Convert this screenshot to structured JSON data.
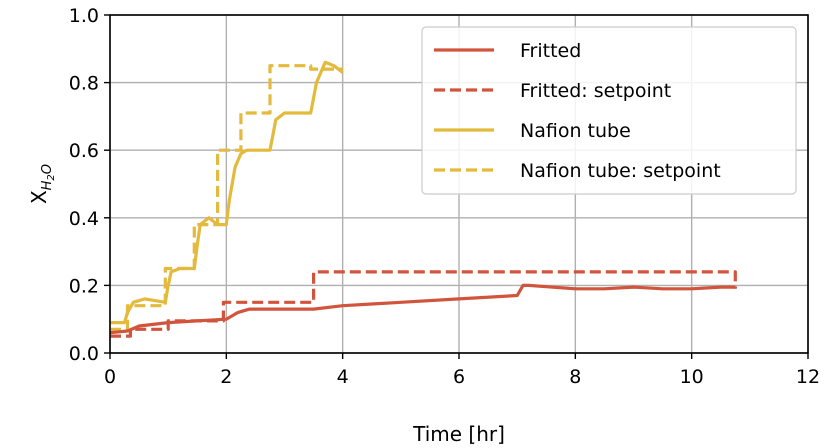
{
  "chart_data": {
    "type": "line",
    "title": "",
    "xlabel": "Time [hr]",
    "ylabel_main": "X",
    "ylabel_sub": "H",
    "ylabel_sub2": "2",
    "ylabel_sub3": "O",
    "xlim": [
      0,
      12
    ],
    "ylim": [
      0,
      1.0
    ],
    "xticks": [
      0,
      2,
      4,
      6,
      8,
      10,
      12
    ],
    "yticks": [
      0.0,
      0.2,
      0.4,
      0.6,
      0.8,
      1.0
    ],
    "xtick_labels": [
      "0",
      "2",
      "4",
      "6",
      "8",
      "10",
      "12"
    ],
    "ytick_labels": [
      "0.0",
      "0.2",
      "0.4",
      "0.6",
      "0.8",
      "1.0"
    ],
    "grid": true,
    "legend_position": "top-right",
    "colors": {
      "fritted": "#d1553c",
      "nafion": "#e3ba3c"
    },
    "series": [
      {
        "name": "Nafion tube: setpoint",
        "style": "dashed",
        "color": "#e3ba3c",
        "x": [
          0.0,
          0.3,
          0.3,
          0.95,
          0.95,
          1.45,
          1.45,
          1.85,
          1.85,
          2.25,
          2.25,
          2.75,
          2.75,
          3.45,
          3.45,
          4.0
        ],
        "y": [
          0.07,
          0.07,
          0.14,
          0.14,
          0.25,
          0.25,
          0.38,
          0.38,
          0.6,
          0.6,
          0.71,
          0.71,
          0.85,
          0.85,
          0.84,
          0.84
        ]
      },
      {
        "name": "Nafion tube",
        "style": "solid",
        "color": "#e3ba3c",
        "x": [
          0.0,
          0.25,
          0.3,
          0.4,
          0.6,
          0.95,
          1.0,
          1.05,
          1.2,
          1.45,
          1.5,
          1.55,
          1.7,
          1.85,
          1.9,
          2.0,
          2.05,
          2.15,
          2.25,
          2.35,
          2.5,
          2.75,
          2.85,
          3.0,
          3.2,
          3.45,
          3.55,
          3.7,
          3.85,
          4.0
        ],
        "y": [
          0.09,
          0.09,
          0.12,
          0.15,
          0.16,
          0.15,
          0.2,
          0.24,
          0.25,
          0.25,
          0.32,
          0.38,
          0.4,
          0.38,
          0.38,
          0.38,
          0.45,
          0.55,
          0.59,
          0.6,
          0.6,
          0.6,
          0.69,
          0.71,
          0.71,
          0.71,
          0.8,
          0.86,
          0.85,
          0.83
        ]
      },
      {
        "name": "Fritted: setpoint",
        "style": "dashed",
        "color": "#d1553c",
        "x": [
          0.0,
          0.35,
          0.35,
          1.0,
          1.0,
          1.95,
          1.95,
          3.5,
          3.5,
          10.75,
          10.75
        ],
        "y": [
          0.05,
          0.05,
          0.07,
          0.07,
          0.095,
          0.095,
          0.15,
          0.15,
          0.24,
          0.24,
          0.19
        ]
      },
      {
        "name": "Fritted",
        "style": "solid",
        "color": "#d1553c",
        "x": [
          0.0,
          0.3,
          0.5,
          1.0,
          1.5,
          2.0,
          2.2,
          2.4,
          3.0,
          3.5,
          4.0,
          4.5,
          5.0,
          6.0,
          7.0,
          7.1,
          7.2,
          8.0,
          8.5,
          9.0,
          9.5,
          10.0,
          10.5,
          10.75
        ],
        "y": [
          0.06,
          0.065,
          0.08,
          0.09,
          0.095,
          0.1,
          0.12,
          0.13,
          0.13,
          0.13,
          0.14,
          0.145,
          0.15,
          0.16,
          0.17,
          0.2,
          0.2,
          0.19,
          0.19,
          0.195,
          0.19,
          0.19,
          0.195,
          0.195
        ]
      }
    ],
    "legend": [
      {
        "label": "Fritted",
        "style": "solid",
        "color": "#d1553c"
      },
      {
        "label": "Fritted: setpoint",
        "style": "dashed",
        "color": "#d1553c"
      },
      {
        "label": "Nafion tube",
        "style": "solid",
        "color": "#e3ba3c"
      },
      {
        "label": "Nafion tube: setpoint",
        "style": "dashed",
        "color": "#e3ba3c"
      }
    ]
  }
}
